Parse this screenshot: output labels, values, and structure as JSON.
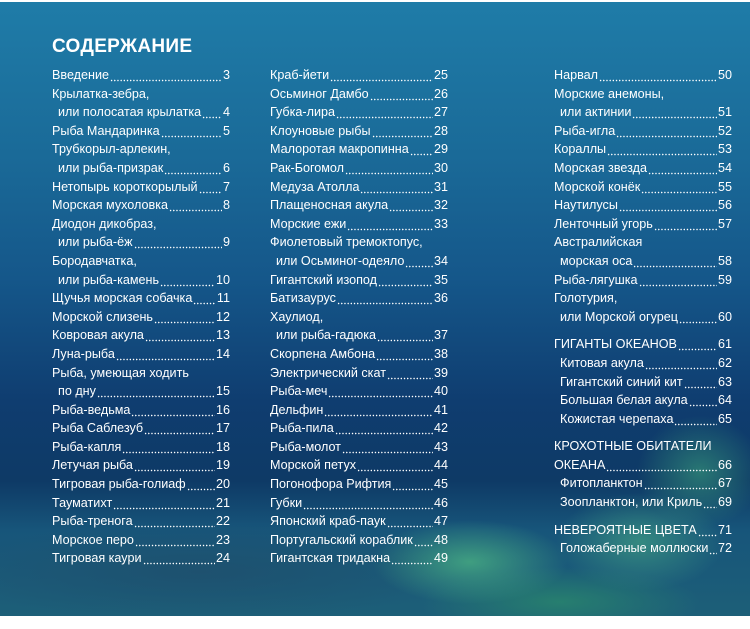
{
  "title": "СОДЕРЖАНИЕ",
  "columns": [
    [
      {
        "lines": [
          "Введение"
        ],
        "page": "3"
      },
      {
        "lines": [
          "Крылатка-зебра,",
          "или полосатая крылатка"
        ],
        "page": "4"
      },
      {
        "lines": [
          "Рыба Мандаринка"
        ],
        "page": "5"
      },
      {
        "lines": [
          "Трубкорыл-арлекин,",
          "или рыба-призрак"
        ],
        "page": "6"
      },
      {
        "lines": [
          "Нетопырь короткорылый"
        ],
        "page": "7"
      },
      {
        "lines": [
          "Морская мухоловка"
        ],
        "page": "8"
      },
      {
        "lines": [
          "Диодон дикобраз,",
          "или рыба-ёж"
        ],
        "page": "9"
      },
      {
        "lines": [
          "Бородавчатка,",
          "или рыба-камень"
        ],
        "page": "10"
      },
      {
        "lines": [
          "Щучья морская собачка"
        ],
        "page": "11"
      },
      {
        "lines": [
          "Морской слизень"
        ],
        "page": "12"
      },
      {
        "lines": [
          "Ковровая акула"
        ],
        "page": "13"
      },
      {
        "lines": [
          "Луна-рыба"
        ],
        "page": "14"
      },
      {
        "lines": [
          "Рыба, умеющая ходить",
          "по дну"
        ],
        "page": "15"
      },
      {
        "lines": [
          "Рыба-ведьма"
        ],
        "page": "16"
      },
      {
        "lines": [
          "Рыба Саблезуб"
        ],
        "page": "17"
      },
      {
        "lines": [
          "Рыба-капля"
        ],
        "page": "18"
      },
      {
        "lines": [
          "Летучая рыба"
        ],
        "page": "19"
      },
      {
        "lines": [
          "Тигровая рыба-голиаф"
        ],
        "page": "20"
      },
      {
        "lines": [
          "Тауматихт"
        ],
        "page": "21"
      },
      {
        "lines": [
          "Рыба-тренога"
        ],
        "page": "22"
      },
      {
        "lines": [
          "Морское перо"
        ],
        "page": "23"
      },
      {
        "lines": [
          "Тигровая каури"
        ],
        "page": "24"
      }
    ],
    [
      {
        "lines": [
          "Краб-йети"
        ],
        "page": "25"
      },
      {
        "lines": [
          "Осьминог Дамбо"
        ],
        "page": "26"
      },
      {
        "lines": [
          "Губка-лира"
        ],
        "page": "27"
      },
      {
        "lines": [
          "Клоуновые рыбы"
        ],
        "page": "28"
      },
      {
        "lines": [
          "Малоротая макропинна"
        ],
        "page": "29"
      },
      {
        "lines": [
          "Рак-Богомол"
        ],
        "page": "30"
      },
      {
        "lines": [
          "Медуза Атолла"
        ],
        "page": "31"
      },
      {
        "lines": [
          "Плащеносная акула"
        ],
        "page": "32"
      },
      {
        "lines": [
          "Морские ежи"
        ],
        "page": "33"
      },
      {
        "lines": [
          "Фиолетовый тремоктопус,",
          "или Осьминог-одеяло"
        ],
        "page": "34"
      },
      {
        "lines": [
          "Гигантский изопод"
        ],
        "page": "35"
      },
      {
        "lines": [
          "Батизаурус"
        ],
        "page": "36"
      },
      {
        "lines": [
          "Хаулиод,",
          "или рыба-гадюка"
        ],
        "page": "37"
      },
      {
        "lines": [
          "Скорпена Амбона"
        ],
        "page": "38"
      },
      {
        "lines": [
          "Электрический скат"
        ],
        "page": "39"
      },
      {
        "lines": [
          "Рыба-меч"
        ],
        "page": "40"
      },
      {
        "lines": [
          "Дельфин"
        ],
        "page": "41"
      },
      {
        "lines": [
          "Рыба-пила"
        ],
        "page": "42"
      },
      {
        "lines": [
          "Рыба-молот"
        ],
        "page": "43"
      },
      {
        "lines": [
          "Морской петух"
        ],
        "page": "44"
      },
      {
        "lines": [
          "Погонофора Рифтия"
        ],
        "page": "45"
      },
      {
        "lines": [
          "Губки"
        ],
        "page": "46"
      },
      {
        "lines": [
          "Японский краб-паук"
        ],
        "page": "47"
      },
      {
        "lines": [
          "Португальский кораблик"
        ],
        "page": "48"
      },
      {
        "lines": [
          "Гигантская тридакна"
        ],
        "page": "49"
      }
    ],
    [
      {
        "lines": [
          "Нарвал"
        ],
        "page": "50"
      },
      {
        "lines": [
          "Морские анемоны,",
          "или актинии"
        ],
        "page": "51"
      },
      {
        "lines": [
          "Рыба-игла"
        ],
        "page": "52"
      },
      {
        "lines": [
          "Кораллы"
        ],
        "page": "53"
      },
      {
        "lines": [
          "Морская звезда"
        ],
        "page": "54"
      },
      {
        "lines": [
          "Морской конёк"
        ],
        "page": "55"
      },
      {
        "lines": [
          "Наутилусы"
        ],
        "page": "56"
      },
      {
        "lines": [
          "Ленточный угорь"
        ],
        "page": "57"
      },
      {
        "lines": [
          "Австралийская",
          "морская оса"
        ],
        "page": "58"
      },
      {
        "lines": [
          "Рыба-лягушка"
        ],
        "page": "59"
      },
      {
        "lines": [
          "Голотурия,",
          "или Морской огурец"
        ],
        "page": "60"
      },
      {
        "gap": true
      },
      {
        "lines": [
          "ГИГАНТЫ ОКЕАНОВ"
        ],
        "page": "61",
        "section": true
      },
      {
        "lines": [
          "Китовая акула"
        ],
        "page": "62",
        "sub": true
      },
      {
        "lines": [
          "Гигантский синий кит"
        ],
        "page": "63",
        "sub": true
      },
      {
        "lines": [
          "Большая белая акула"
        ],
        "page": "64",
        "sub": true
      },
      {
        "lines": [
          "Кожистая черепаха"
        ],
        "page": "65",
        "sub": true
      },
      {
        "gap": true
      },
      {
        "lines": [
          "КРОХОТНЫЕ ОБИТАТЕЛИ",
          "ОКЕАНА"
        ],
        "page": "66",
        "section": true,
        "noindent": true
      },
      {
        "lines": [
          "Фитопланктон"
        ],
        "page": "67",
        "sub": true
      },
      {
        "lines": [
          "Зоопланктон, или Криль"
        ],
        "page": "69",
        "sub": true
      },
      {
        "gap": true
      },
      {
        "lines": [
          "НЕВЕРОЯТНЫЕ ЦВЕТА"
        ],
        "page": "71",
        "section": true
      },
      {
        "lines": [
          "Голожаберные моллюски"
        ],
        "page": "72",
        "sub": true
      }
    ]
  ],
  "colors": {
    "text": "#ffffff",
    "water_top": "#1f7ca8",
    "water_deep": "#0f3d70",
    "reef": "#3f9e80"
  }
}
